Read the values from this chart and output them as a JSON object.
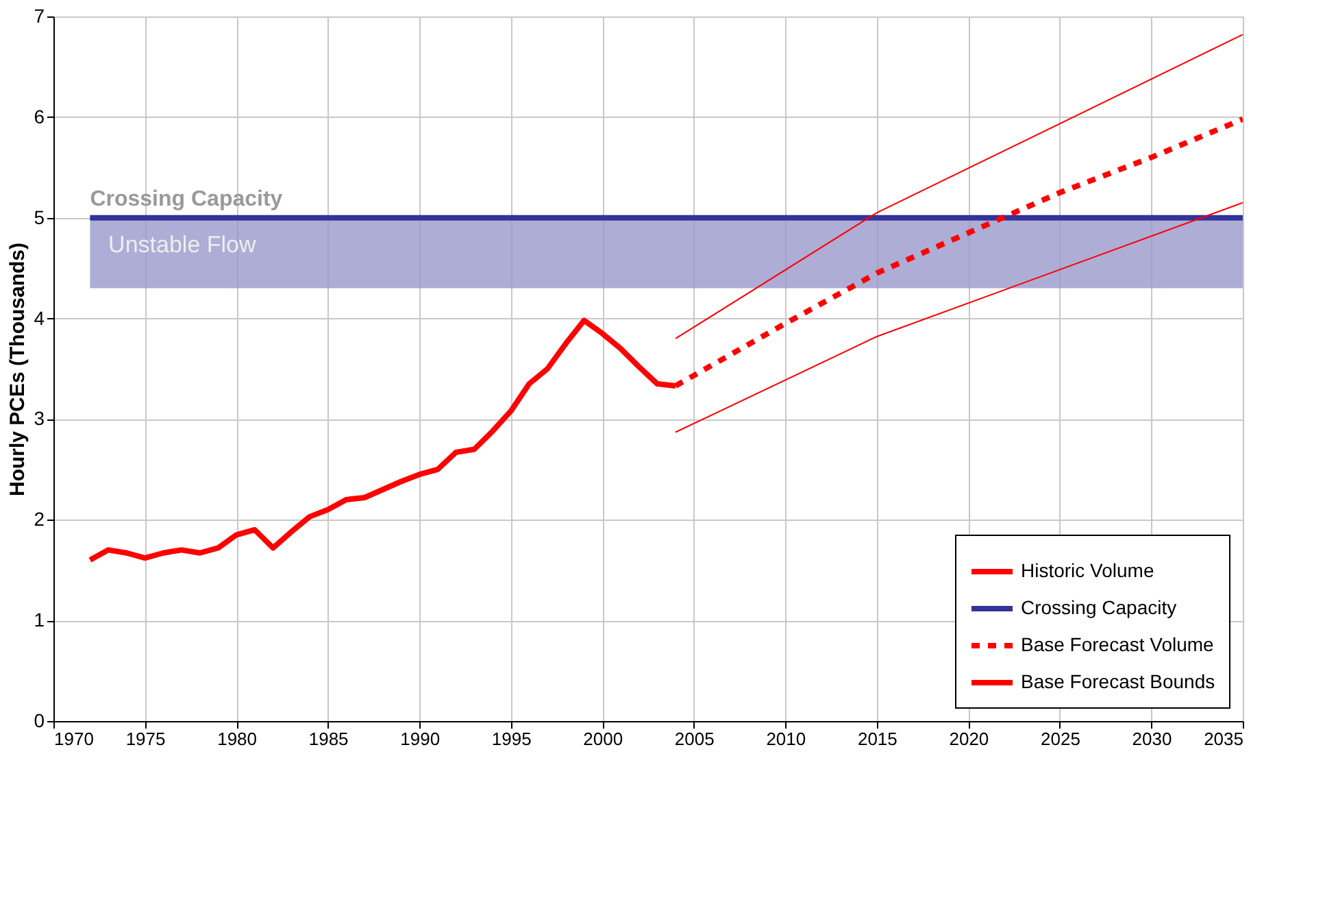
{
  "chart_data": {
    "type": "line",
    "ylabel": "Hourly PCEs (Thousands)",
    "xlim": [
      1970,
      2035
    ],
    "xticks": [
      1970,
      1975,
      1980,
      1985,
      1990,
      1995,
      2000,
      2005,
      2010,
      2015,
      2020,
      2025,
      2030,
      2035
    ],
    "ylim": [
      0,
      7
    ],
    "yticks": [
      0,
      1,
      2,
      3,
      4,
      5,
      6,
      7
    ],
    "grid": true,
    "legend": "bottom right",
    "series": [
      {
        "name": "Historic Volume",
        "color": "#ff0000",
        "line_style": "solid",
        "x": [
          1972,
          1973,
          1974,
          1975,
          1976,
          1977,
          1978,
          1979,
          1980,
          1981,
          1982,
          1983,
          1984,
          1985,
          1986,
          1987,
          1988,
          1989,
          1990,
          1991,
          1992,
          1993,
          1994,
          1995,
          1996,
          1997,
          1998,
          1999,
          2000,
          2001,
          2002,
          2003,
          2004
        ],
        "values": [
          1.6,
          1.7,
          1.67,
          1.62,
          1.67,
          1.7,
          1.67,
          1.72,
          1.85,
          1.9,
          1.72,
          1.88,
          2.03,
          2.1,
          2.2,
          2.22,
          2.3,
          2.38,
          2.45,
          2.5,
          2.67,
          2.7,
          2.88,
          3.08,
          3.35,
          3.5,
          3.75,
          3.98,
          3.85,
          3.7,
          3.52,
          3.35,
          3.33
        ]
      },
      {
        "name": "Crossing Capacity",
        "color": "#333399",
        "line_style": "solid",
        "x": [
          1972,
          2035
        ],
        "values": [
          5,
          5
        ]
      },
      {
        "name": "Base Forecast Volume",
        "color": "#ff0000",
        "line_style": "dashed",
        "x": [
          2004,
          2010,
          2015,
          2020,
          2025,
          2030,
          2035
        ],
        "values": [
          3.33,
          3.95,
          4.45,
          4.85,
          5.25,
          5.6,
          5.98
        ]
      },
      {
        "name": "Base Forecast Bounds",
        "color": "#ff0000",
        "line_style": "solid",
        "x": [
          2004,
          2015,
          2035
        ],
        "values": [
          3.8,
          5.05,
          6.82
        ]
      },
      {
        "color": "#ff0000",
        "line_style": "solid",
        "x": [
          2004,
          2015,
          2035
        ],
        "values": [
          2.87,
          3.82,
          5.15
        ]
      }
    ],
    "bands": [
      {
        "axis": "y",
        "from": 4.3,
        "to": 5,
        "label": "Unstable Flow",
        "color": "#9999cc"
      }
    ],
    "annotations": [
      {
        "text": "Crossing Capacity",
        "x": 1972,
        "y": 5
      }
    ]
  }
}
